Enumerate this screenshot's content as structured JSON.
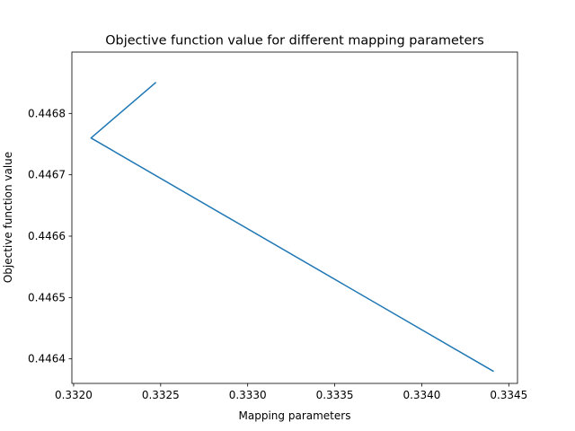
{
  "chart_data": {
    "type": "line",
    "title": "Objective function value for different mapping parameters",
    "xlabel": "Mapping parameters",
    "ylabel": "Objective function value",
    "xlim": [
      0.33199,
      0.33455
    ],
    "ylim": [
      0.44636,
      0.4469
    ],
    "xticks": [
      0.332,
      0.3325,
      0.333,
      0.3335,
      0.334,
      0.3345
    ],
    "xtick_labels": [
      "0.3320",
      "0.3325",
      "0.3330",
      "0.3335",
      "0.3340",
      "0.3345"
    ],
    "yticks": [
      0.4464,
      0.4465,
      0.4466,
      0.4467,
      0.4468
    ],
    "ytick_labels": [
      "0.4464",
      "0.4465",
      "0.4466",
      "0.4467",
      "0.4468"
    ],
    "grid": false,
    "series": [
      {
        "color": "#1f77b4",
        "points": [
          {
            "x": 0.33247,
            "y": 0.44685
          },
          {
            "x": 0.3321,
            "y": 0.44676
          },
          {
            "x": 0.33441,
            "y": 0.44638
          }
        ]
      }
    ]
  }
}
